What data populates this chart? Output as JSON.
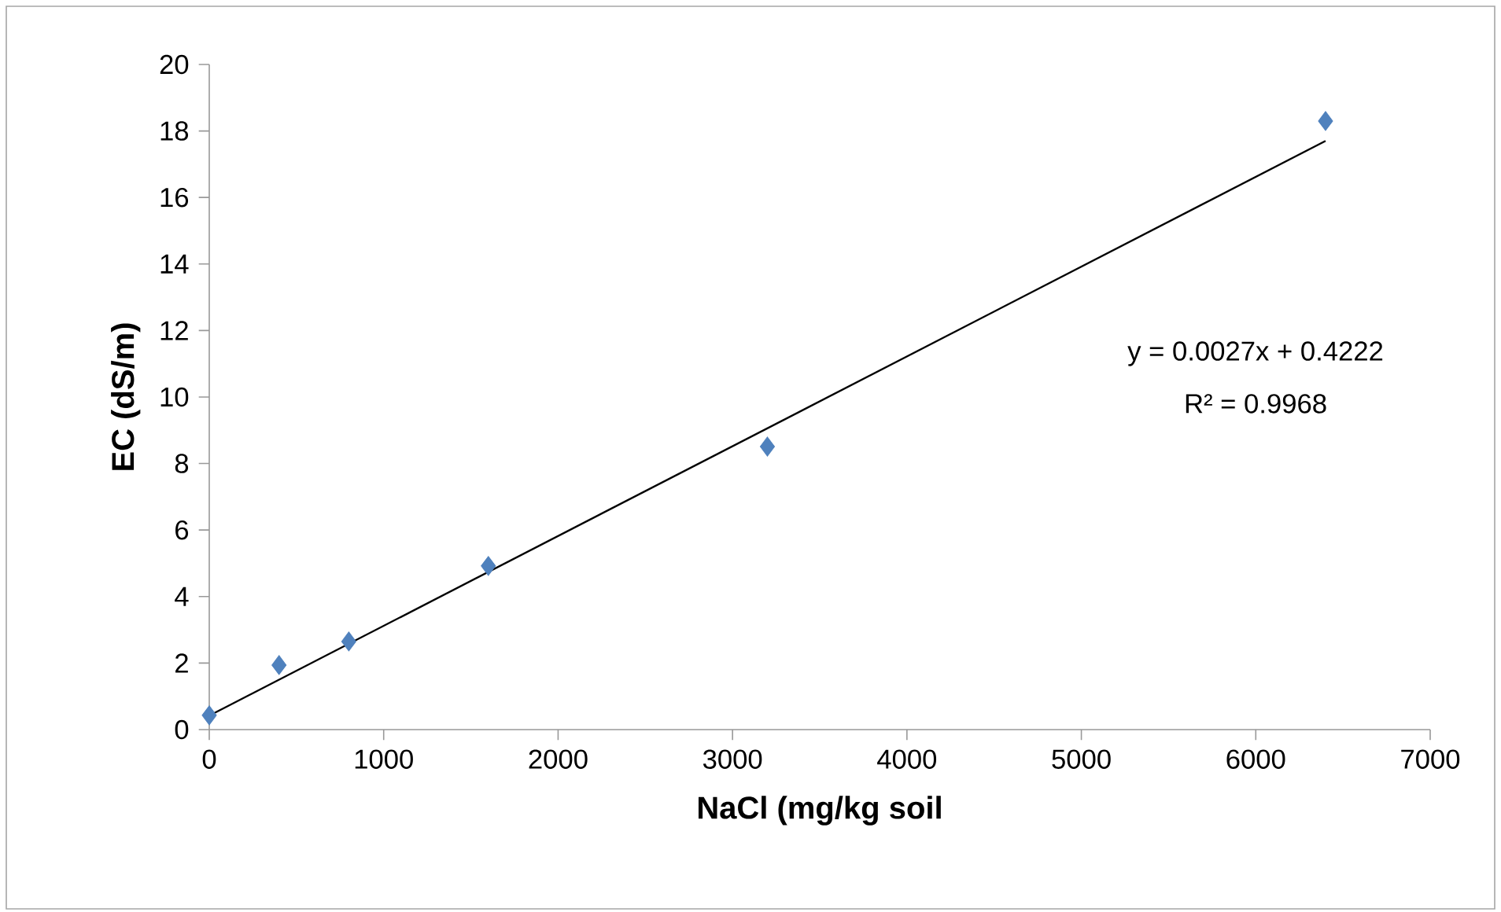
{
  "chart_data": {
    "type": "scatter",
    "xlabel": "NaCl (mg/kg soil",
    "ylabel": "EC (dS/m)",
    "xlim": [
      0,
      7000
    ],
    "ylim": [
      0,
      20
    ],
    "xticks": [
      0,
      1000,
      2000,
      3000,
      4000,
      5000,
      6000,
      7000
    ],
    "yticks": [
      0,
      2,
      4,
      6,
      8,
      10,
      12,
      14,
      16,
      18,
      20
    ],
    "marker": "diamond",
    "series": [
      {
        "color": "#4f81bd",
        "x": [
          0,
          400,
          800,
          1600,
          3200,
          6400
        ],
        "values": [
          0.43,
          1.94,
          2.65,
          4.92,
          8.51,
          18.3
        ]
      },
      {
        "type": "line",
        "color": "#000000",
        "marker": "none",
        "x": [
          0,
          6400
        ],
        "values": [
          0.42,
          17.7
        ]
      }
    ],
    "annotations": [
      "y = 0.0027x + 0.4222",
      "R² = 0.9968"
    ]
  }
}
